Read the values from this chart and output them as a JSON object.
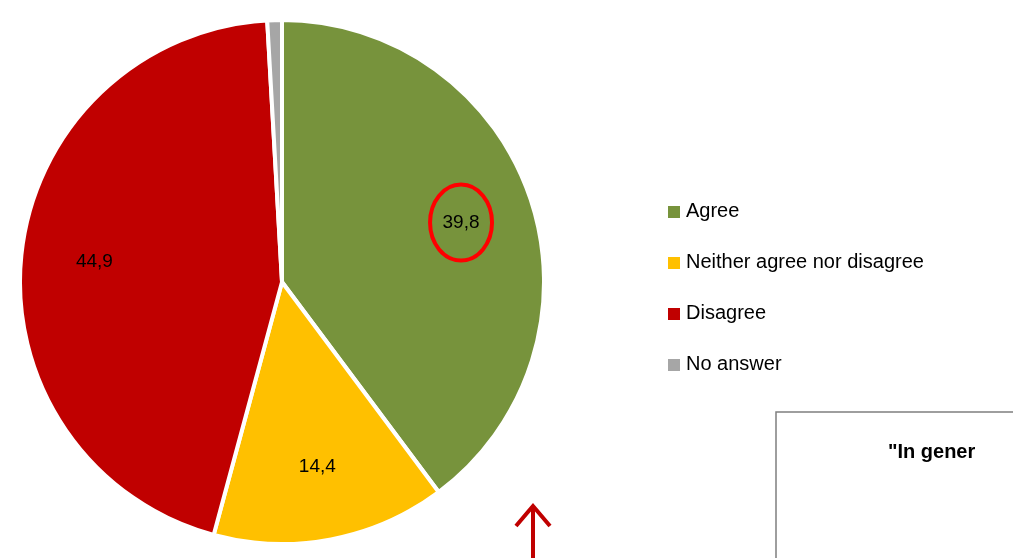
{
  "chart_data": {
    "type": "pie",
    "categories": [
      "Agree",
      "Neither agree nor disagree",
      "Disagree",
      "No answer"
    ],
    "values": [
      39.8,
      14.4,
      44.9,
      0.9
    ],
    "colors": [
      "#77933c",
      "#ffc000",
      "#c00000",
      "#a6a6a6"
    ],
    "value_labels": [
      "39,8",
      "14,4",
      "44,9",
      null
    ],
    "legend": "right",
    "annotations": [
      "\"In gener"
    ]
  }
}
